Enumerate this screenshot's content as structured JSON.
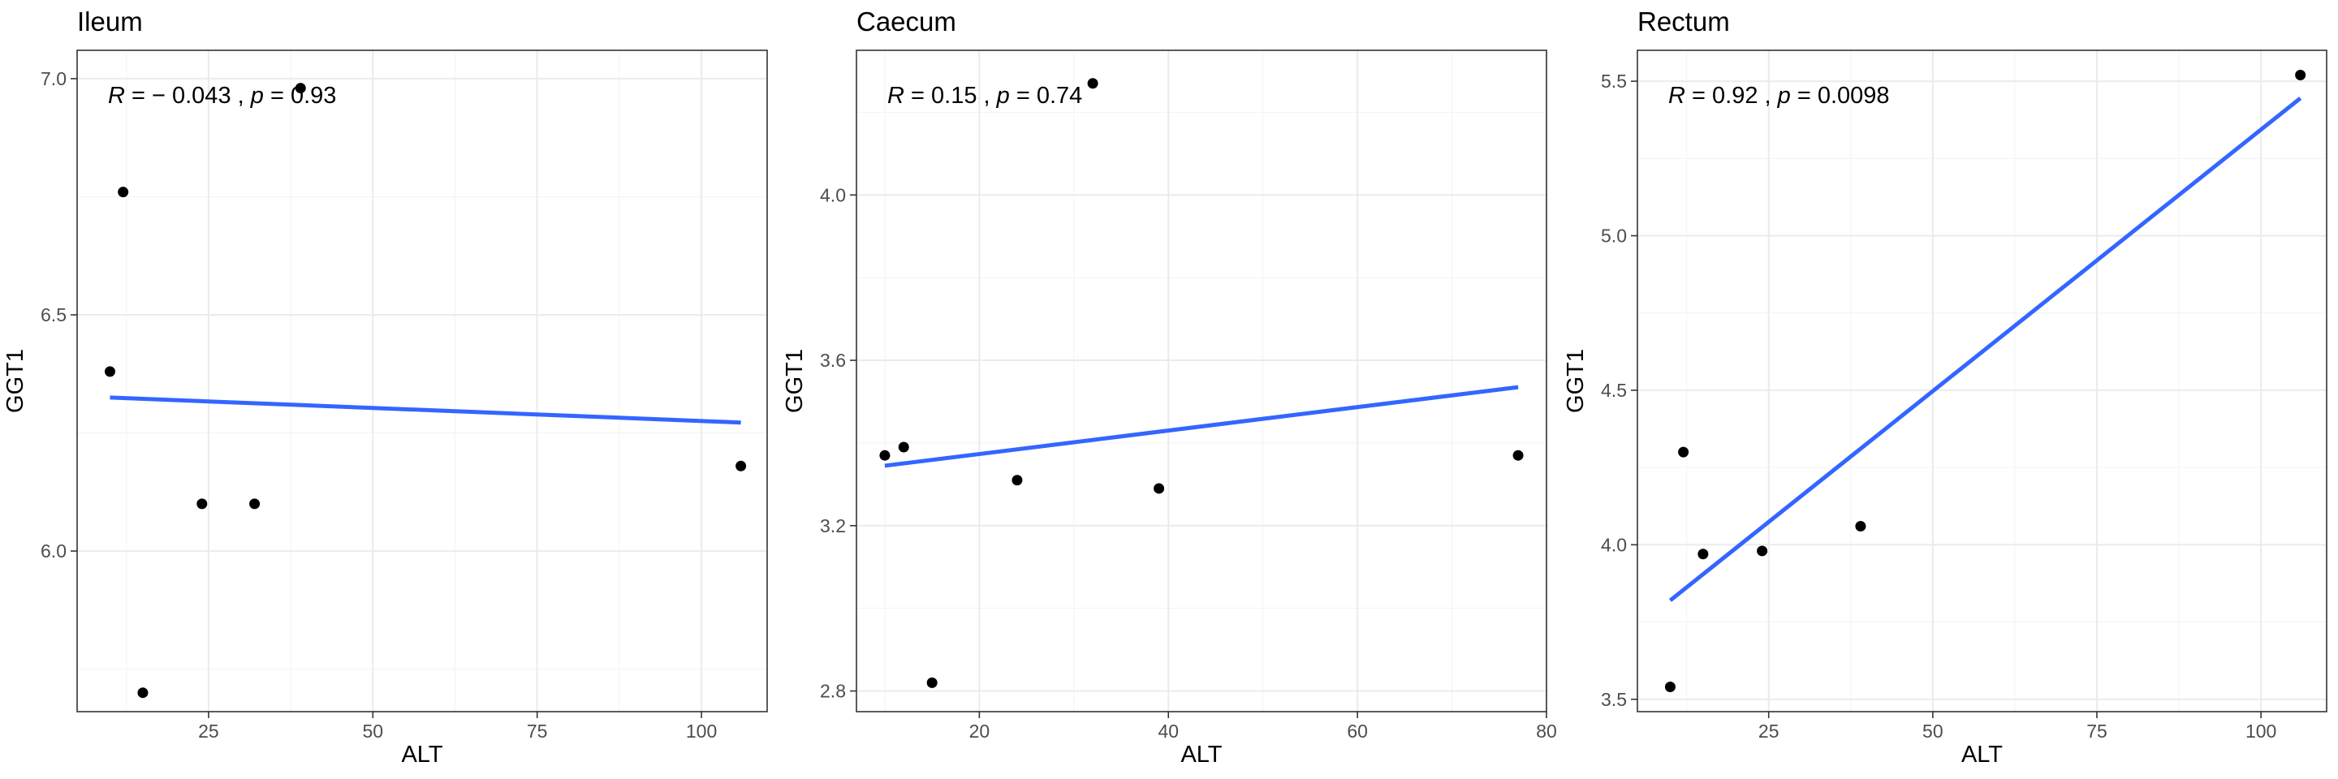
{
  "chart_data": [
    {
      "type": "scatter",
      "title": "Ileum",
      "xlabel": "ALT",
      "ylabel": "GGT1",
      "xlim": [
        5,
        110
      ],
      "ylim": [
        5.66,
        7.06
      ],
      "x_ticks": [
        25,
        50,
        75,
        100
      ],
      "x_tick_labels": [
        "25",
        "50",
        "75",
        "100"
      ],
      "y_ticks": [
        6.0,
        6.5,
        7.0
      ],
      "y_tick_labels": [
        "6.0",
        "6.5",
        "7.0"
      ],
      "grid": true,
      "points": [
        {
          "x": 10,
          "y": 6.38
        },
        {
          "x": 12,
          "y": 6.76
        },
        {
          "x": 15,
          "y": 5.7
        },
        {
          "x": 24,
          "y": 6.1
        },
        {
          "x": 32,
          "y": 6.1
        },
        {
          "x": 39,
          "y": 6.98
        },
        {
          "x": 106,
          "y": 6.18
        }
      ],
      "fit_line": {
        "x": [
          10,
          106
        ],
        "y": [
          6.325,
          6.272
        ],
        "color": "#3366ff"
      },
      "point_color": "#000000",
      "annotation": {
        "r_label": "R",
        "r_value": " = − 0.043 , ",
        "p_label": "p",
        "p_value": " = 0.93"
      }
    },
    {
      "type": "scatter",
      "title": "Caecum",
      "xlabel": "ALT",
      "ylabel": "GGT1",
      "xlim": [
        7,
        80
      ],
      "ylim": [
        2.75,
        4.35
      ],
      "x_ticks": [
        20,
        40,
        60,
        80
      ],
      "x_tick_labels": [
        "20",
        "40",
        "60",
        "80"
      ],
      "y_ticks": [
        2.8,
        3.2,
        3.6,
        4.0
      ],
      "y_tick_labels": [
        "2.8",
        "3.2",
        "3.6",
        "4.0"
      ],
      "grid": true,
      "points": [
        {
          "x": 10,
          "y": 3.37
        },
        {
          "x": 12,
          "y": 3.39
        },
        {
          "x": 15,
          "y": 2.82
        },
        {
          "x": 24,
          "y": 3.31
        },
        {
          "x": 32,
          "y": 4.27
        },
        {
          "x": 39,
          "y": 3.29
        },
        {
          "x": 77,
          "y": 3.37
        }
      ],
      "fit_line": {
        "x": [
          10,
          77
        ],
        "y": [
          3.345,
          3.535
        ],
        "color": "#3366ff"
      },
      "point_color": "#000000",
      "annotation": {
        "r_label": "R",
        "r_value": " = 0.15 , ",
        "p_label": "p",
        "p_value": " = 0.74"
      }
    },
    {
      "type": "scatter",
      "title": "Rectum",
      "xlabel": "ALT",
      "ylabel": "GGT1",
      "xlim": [
        5,
        110
      ],
      "ylim": [
        3.46,
        5.6
      ],
      "x_ticks": [
        25,
        50,
        75,
        100
      ],
      "x_tick_labels": [
        "25",
        "50",
        "75",
        "100"
      ],
      "y_ticks": [
        3.5,
        4.0,
        4.5,
        5.0,
        5.5
      ],
      "y_tick_labels": [
        "3.5",
        "4.0",
        "4.5",
        "5.0",
        "5.5"
      ],
      "grid": true,
      "points": [
        {
          "x": 10,
          "y": 3.54
        },
        {
          "x": 12,
          "y": 4.3
        },
        {
          "x": 15,
          "y": 3.97
        },
        {
          "x": 24,
          "y": 3.98
        },
        {
          "x": 39,
          "y": 4.06
        },
        {
          "x": 106,
          "y": 5.52
        }
      ],
      "fit_line": {
        "x": [
          10,
          106
        ],
        "y": [
          3.82,
          5.445
        ],
        "color": "#3366ff"
      },
      "point_color": "#000000",
      "annotation": {
        "r_label": "R",
        "r_value": " = 0.92 , ",
        "p_label": "p",
        "p_value": " = 0.0098"
      }
    }
  ]
}
